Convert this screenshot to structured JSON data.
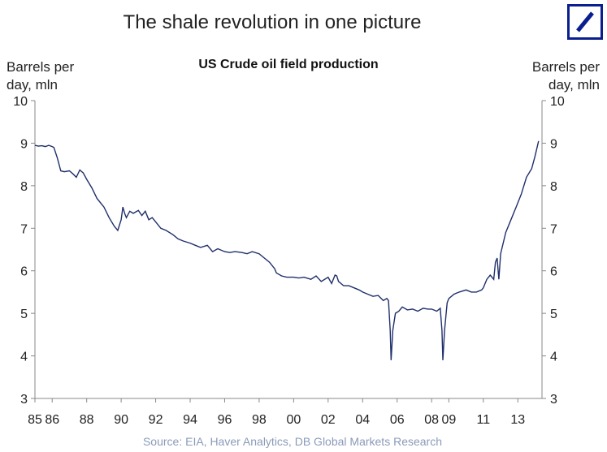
{
  "title": "The shale revolution in one picture",
  "logo": {
    "icon": "deutsche-bank-slash-logo",
    "color": "#0a1f8f"
  },
  "source": "Source: EIA, Haver Analytics, DB Global Markets Research",
  "chart_data": {
    "type": "line",
    "title": "US Crude oil field production",
    "ylabel_left": [
      "Barrels per",
      "day, mln"
    ],
    "ylabel_right": [
      "Barrels per",
      "day, mln"
    ],
    "ylim": [
      3,
      10
    ],
    "yticks": [
      3,
      4,
      5,
      6,
      7,
      8,
      9,
      10
    ],
    "xlim": [
      1985,
      2014.4
    ],
    "xticks": [
      {
        "value": 1985,
        "label": "85"
      },
      {
        "value": 1986,
        "label": "86"
      },
      {
        "value": 1988,
        "label": "88"
      },
      {
        "value": 1990,
        "label": "90"
      },
      {
        "value": 1992,
        "label": "92"
      },
      {
        "value": 1994,
        "label": "94"
      },
      {
        "value": 1996,
        "label": "96"
      },
      {
        "value": 1998,
        "label": "98"
      },
      {
        "value": 2000,
        "label": "00"
      },
      {
        "value": 2002,
        "label": "02"
      },
      {
        "value": 2004,
        "label": "04"
      },
      {
        "value": 2006,
        "label": "06"
      },
      {
        "value": 2008,
        "label": "08"
      },
      {
        "value": 2009,
        "label": "09"
      },
      {
        "value": 2011,
        "label": "11"
      },
      {
        "value": 2013,
        "label": "13"
      }
    ],
    "grid": false,
    "series_color": "#1f2f6b",
    "series": [
      {
        "x": [
          1985.0,
          1985.2,
          1985.4,
          1985.6,
          1985.8,
          1986.0,
          1986.1,
          1986.3,
          1986.5,
          1986.7,
          1987.0,
          1987.2,
          1987.4,
          1987.6,
          1987.8,
          1988.0,
          1988.3,
          1988.6,
          1989.0,
          1989.3,
          1989.6,
          1989.8,
          1990.0,
          1990.1,
          1990.2,
          1990.3,
          1990.5,
          1990.7,
          1991.0,
          1991.2,
          1991.4,
          1991.6,
          1991.8,
          1992.0,
          1992.3,
          1992.6,
          1993.0,
          1993.3,
          1993.6,
          1994.0,
          1994.3,
          1994.6,
          1995.0,
          1995.3,
          1995.6,
          1996.0,
          1996.3,
          1996.6,
          1997.0,
          1997.3,
          1997.6,
          1998.0,
          1998.3,
          1998.6,
          1998.9,
          1999.0,
          1999.3,
          1999.6,
          2000.0,
          2000.3,
          2000.6,
          2001.0,
          2001.3,
          2001.6,
          2002.0,
          2002.2,
          2002.4,
          2002.5,
          2002.6,
          2002.9,
          2003.2,
          2003.5,
          2003.8,
          2004.0,
          2004.3,
          2004.6,
          2004.9,
          2005.2,
          2005.4,
          2005.5,
          2005.6,
          2005.65,
          2005.75,
          2005.9,
          2006.1,
          2006.3,
          2006.6,
          2006.9,
          2007.2,
          2007.5,
          2007.8,
          2008.0,
          2008.3,
          2008.5,
          2008.6,
          2008.65,
          2008.75,
          2008.9,
          2009.0,
          2009.3,
          2009.6,
          2010.0,
          2010.3,
          2010.6,
          2010.9,
          2011.0,
          2011.2,
          2011.4,
          2011.6,
          2011.7,
          2011.8,
          2011.9,
          2012.0,
          2012.3,
          2012.6,
          2012.9,
          2013.2,
          2013.5,
          2013.8,
          2014.0,
          2014.2
        ],
        "y": [
          8.95,
          8.93,
          8.94,
          8.92,
          8.95,
          8.92,
          8.9,
          8.65,
          8.35,
          8.33,
          8.35,
          8.28,
          8.2,
          8.37,
          8.3,
          8.15,
          7.95,
          7.7,
          7.5,
          7.25,
          7.05,
          6.95,
          7.2,
          7.5,
          7.35,
          7.25,
          7.4,
          7.35,
          7.42,
          7.3,
          7.4,
          7.2,
          7.25,
          7.15,
          7.0,
          6.95,
          6.85,
          6.75,
          6.7,
          6.65,
          6.6,
          6.55,
          6.6,
          6.45,
          6.52,
          6.45,
          6.43,
          6.45,
          6.43,
          6.4,
          6.45,
          6.4,
          6.3,
          6.2,
          6.05,
          5.95,
          5.88,
          5.85,
          5.85,
          5.83,
          5.85,
          5.8,
          5.88,
          5.75,
          5.85,
          5.7,
          5.9,
          5.88,
          5.75,
          5.65,
          5.65,
          5.6,
          5.55,
          5.5,
          5.45,
          5.4,
          5.42,
          5.3,
          5.35,
          5.3,
          4.6,
          3.9,
          4.6,
          5.0,
          5.05,
          5.15,
          5.08,
          5.1,
          5.05,
          5.12,
          5.1,
          5.1,
          5.05,
          5.12,
          4.6,
          3.9,
          4.6,
          5.25,
          5.35,
          5.45,
          5.5,
          5.55,
          5.5,
          5.5,
          5.55,
          5.6,
          5.8,
          5.9,
          5.8,
          6.2,
          6.3,
          5.8,
          6.4,
          6.9,
          7.2,
          7.5,
          7.8,
          8.2,
          8.4,
          8.7,
          9.05
        ]
      }
    ]
  }
}
